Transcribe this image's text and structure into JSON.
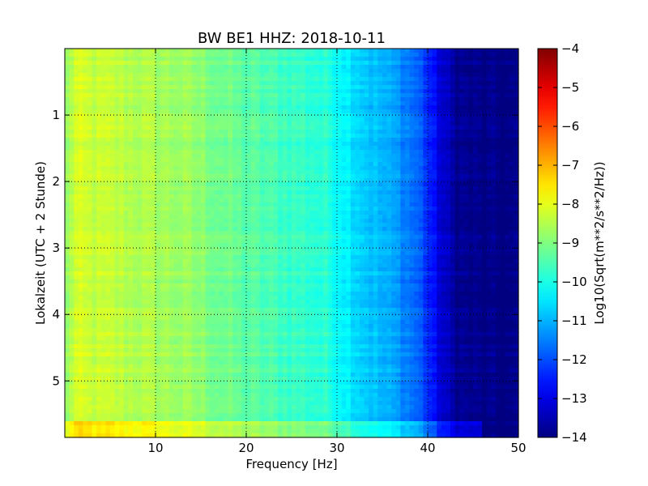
{
  "chart_data": {
    "type": "heatmap",
    "title": "BW BE1 HHZ: 2018-10-11",
    "xlabel": "Frequency [Hz]",
    "ylabel": "Lokalzeit (UTC + 2 Stunde)",
    "xlim": [
      0,
      50
    ],
    "ylim": [
      0,
      5.85
    ],
    "y_axis_inverted": true,
    "x_ticks": [
      10,
      20,
      30,
      40,
      50
    ],
    "x_tick_labels": [
      "10",
      "20",
      "30",
      "40",
      "50"
    ],
    "y_ticks": [
      1,
      2,
      3,
      4,
      5
    ],
    "y_tick_labels": [
      "1",
      "2",
      "3",
      "4",
      "5"
    ],
    "grid": true,
    "colormap": "jet",
    "colorbar": {
      "label": "Log10(Sqrt(m**2/s**2/Hz))",
      "range": [
        -14,
        -4
      ],
      "ticks": [
        -4,
        -5,
        -6,
        -7,
        -8,
        -9,
        -10,
        -11,
        -12,
        -13,
        -14
      ],
      "tick_labels": [
        "−4",
        "−5",
        "−6",
        "−7",
        "−8",
        "−9",
        "−10",
        "−11",
        "−12",
        "−13",
        "−14"
      ]
    },
    "spectrum_profile": {
      "frequency_hz": [
        0,
        1,
        3,
        6,
        10,
        14,
        18,
        22,
        26,
        29,
        31,
        33,
        35,
        37,
        39,
        40,
        41,
        42,
        43,
        44,
        45,
        46,
        50
      ],
      "log_amplitude": [
        -9.0,
        -8.2,
        -8.3,
        -8.4,
        -8.6,
        -8.8,
        -9.2,
        -9.5,
        -9.7,
        -9.9,
        -10.3,
        -10.7,
        -11.0,
        -11.3,
        -11.8,
        -12.3,
        -12.9,
        -13.4,
        -13.7,
        -13.85,
        -13.9,
        -13.95,
        -14.0
      ]
    },
    "features": [
      {
        "time_hours": [
          5.6,
          5.85
        ],
        "frequency_hz": [
          0,
          46
        ],
        "log_amplitude_offset": 0.8
      }
    ]
  }
}
